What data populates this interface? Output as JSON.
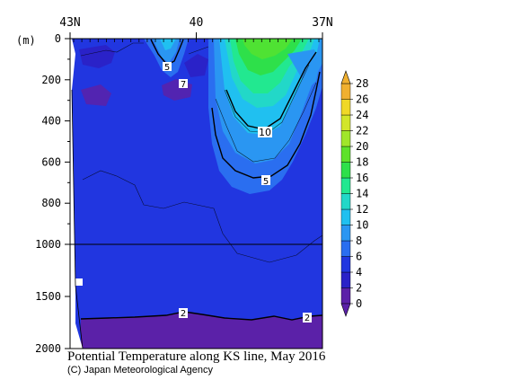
{
  "chart_data": {
    "type": "heatmap",
    "title": "Potential Temperature along KS line, May 2016",
    "credit": "(C) Japan Meteorological Agency",
    "x_axis": {
      "ticks": [
        "43N",
        "40",
        "37N"
      ],
      "tick_values": [
        43,
        40,
        37
      ],
      "range": [
        43,
        37
      ]
    },
    "y_axis": {
      "unit_label": "(m)",
      "ticks_upper": [
        "0",
        "200",
        "400",
        "600",
        "800",
        "1000"
      ],
      "ticks_upper_values": [
        0,
        200,
        400,
        600,
        800,
        1000
      ],
      "ticks_lower": [
        "1500",
        "2000"
      ],
      "ticks_lower_values": [
        1500,
        2000
      ],
      "scale_break_depth": 1000,
      "inverted": true
    },
    "colorbar": {
      "levels": [
        "0",
        "2",
        "4",
        "6",
        "8",
        "10",
        "12",
        "14",
        "16",
        "18",
        "20",
        "22",
        "24",
        "26",
        "28"
      ],
      "colors": [
        "#5b21a8",
        "#2a22c8",
        "#2136e0",
        "#2a6ef0",
        "#2a96f2",
        "#20c0f0",
        "#22d8c8",
        "#22e890",
        "#2ee04a",
        "#5ee22a",
        "#a0e62a",
        "#d2e62a",
        "#f0d828",
        "#f0b030"
      ],
      "arrow_low": "#5b21a8",
      "arrow_high": "#f0b030"
    },
    "contour_labels": [
      "5",
      "7",
      "10",
      "5",
      "2",
      "2"
    ],
    "regions": {
      "deep_cold_below_2C_depth_m": 1750,
      "warm_core_lat_range": [
        38.9,
        37.3
      ],
      "warm_core_max_temp": 18,
      "warm_core_10C_depth_m": 400,
      "warm_core_5C_depth_m": 650,
      "shallow_cold_patch_lat": [
        42.5,
        40.7
      ]
    }
  }
}
